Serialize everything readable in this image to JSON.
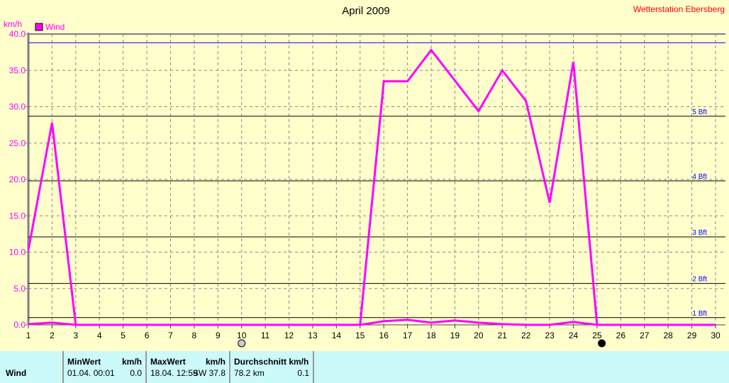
{
  "chart_data": {
    "type": "line",
    "title": "April 2009",
    "station": "Wetterstation Ebersberg",
    "ylabel": "km/h",
    "ylim": [
      0,
      40
    ],
    "xlim": [
      1,
      30
    ],
    "grid": true,
    "legend": {
      "position": "top-left",
      "entries": [
        "Wind"
      ]
    },
    "x": [
      1,
      2,
      3,
      4,
      5,
      6,
      7,
      8,
      9,
      10,
      11,
      12,
      13,
      14,
      15,
      16,
      17,
      18,
      19,
      20,
      21,
      22,
      23,
      24,
      25,
      26,
      27,
      28,
      29,
      30
    ],
    "yticks": [
      "0.0",
      "5.0",
      "10.0",
      "15.0",
      "20.0",
      "25.0",
      "30.0",
      "35.0",
      "40.0"
    ],
    "series": [
      {
        "name": "Wind",
        "color": "#ff00ff",
        "values": [
          10.3,
          27.8,
          0,
          0,
          0,
          0,
          0,
          0,
          0,
          0,
          0,
          0,
          0,
          0,
          0,
          33.5,
          33.5,
          37.8,
          33.6,
          29.4,
          35.0,
          30.8,
          16.8,
          36.2,
          0,
          0,
          0,
          0,
          0,
          0
        ]
      },
      {
        "color": "#ff00ff",
        "values": [
          0.1,
          0.3,
          0,
          0,
          0,
          0,
          0,
          0,
          0,
          0,
          0,
          0,
          0,
          0,
          0,
          0.5,
          0.7,
          0.3,
          0.6,
          0.3,
          0.1,
          0,
          0,
          0.4,
          0,
          0,
          0,
          0,
          0,
          0
        ]
      }
    ],
    "max_line": {
      "value": 38.8,
      "color": "#0000ff"
    },
    "beaufort_lines": [
      {
        "label": "5 Bft",
        "value": 28.7
      },
      {
        "label": "4 Bft",
        "value": 19.8
      },
      {
        "label": "3 Bft",
        "value": 12.1
      },
      {
        "label": "2 Bft",
        "value": 5.7
      },
      {
        "label": "1 Bft",
        "value": 1.0
      }
    ],
    "moon_phases": [
      {
        "day": 10,
        "phase": "full-moon-icon"
      },
      {
        "day": 25.2,
        "phase": "new-moon-icon"
      }
    ]
  },
  "table": {
    "row_label": "Wind",
    "min": {
      "header": "MinWert",
      "unit": "km/h",
      "date": "01.04.  00:01",
      "value": "0.0"
    },
    "max": {
      "header": "MaxWert",
      "unit": "km/h",
      "date": "18.04.  12:59",
      "value": "SW 37.8"
    },
    "avg": {
      "header": "Durchschnitt km/h",
      "distance": "78.2 km",
      "value": "0.1"
    }
  }
}
